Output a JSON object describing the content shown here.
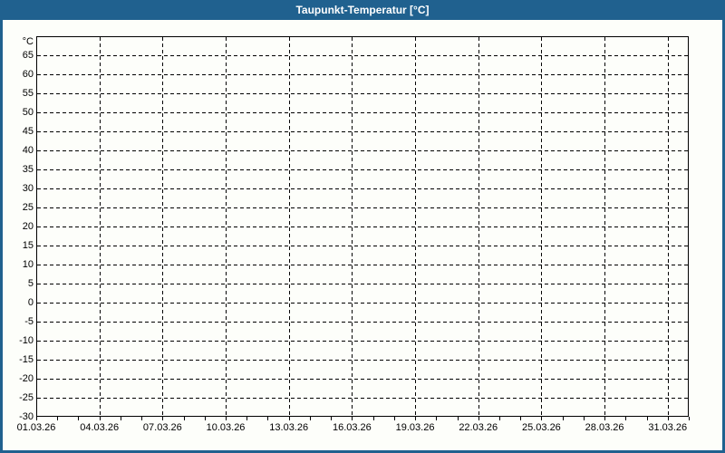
{
  "window": {
    "title": "Taupunkt-Temperatur [°C]"
  },
  "colors": {
    "titlebar_bg": "#20618f",
    "frame_border": "#20618f",
    "page_background": "#fdfefa",
    "grid": "#000000",
    "label_text": "#000000",
    "title_text": "#ffffff"
  },
  "chart_data": {
    "type": "line",
    "title": "Taupunkt-Temperatur [°C]",
    "xlabel": "",
    "ylabel": "",
    "y_axis": {
      "unit": "°C",
      "min": -30,
      "max": 70,
      "tick_step": 5,
      "tick_labels": [
        "65",
        "60",
        "55",
        "50",
        "45",
        "40",
        "35",
        "30",
        "25",
        "20",
        "15",
        "10",
        "5",
        "0",
        "-5",
        "-10",
        "-15",
        "-20",
        "-25",
        "-30"
      ]
    },
    "x_axis": {
      "days_shown": 31,
      "major_tick_step_days": 3,
      "minor_tick_step_days": 1,
      "tick_labels": [
        "01.03.26",
        "04.03.26",
        "07.03.26",
        "10.03.26",
        "13.03.26",
        "16.03.26",
        "19.03.26",
        "22.03.26",
        "25.03.26",
        "28.03.26",
        "31.03.26"
      ]
    },
    "grid": {
      "style": "dashed",
      "horizontal": true,
      "vertical": true
    },
    "legend": [],
    "series": []
  }
}
